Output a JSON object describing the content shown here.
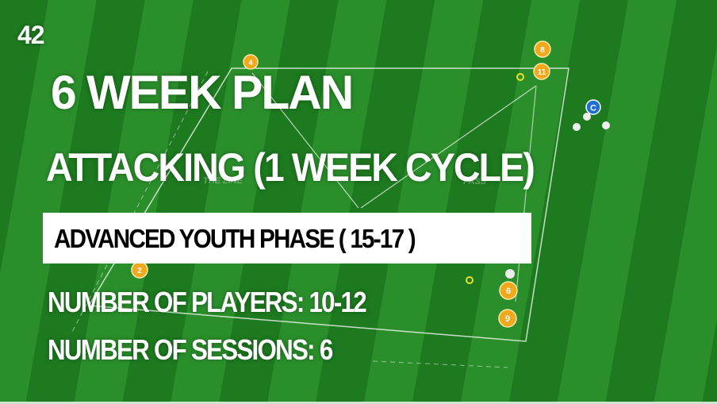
{
  "page_number": "42",
  "title": "6 WEEK PLAN",
  "subtitle": "ATTACKING  (1 WEEK CYCLE)",
  "phase": "ADVANCED YOUTH PHASE  ( 15-17 )",
  "players": "NUMBER OF PLAYERS: 10-12",
  "sessions": "NUMBER OF SESSIONS: 6",
  "background_labels": {
    "left": "THE LINE",
    "right": "PASS"
  },
  "players_markers": [
    "4",
    "8",
    "11",
    "2",
    "6",
    "9"
  ],
  "coach_marker": "C",
  "colors": {
    "pitch_dark": "#1d7a1f",
    "pitch_light": "#2a8f2b",
    "player": "#f0a81c",
    "coach": "#1e6fd0"
  }
}
